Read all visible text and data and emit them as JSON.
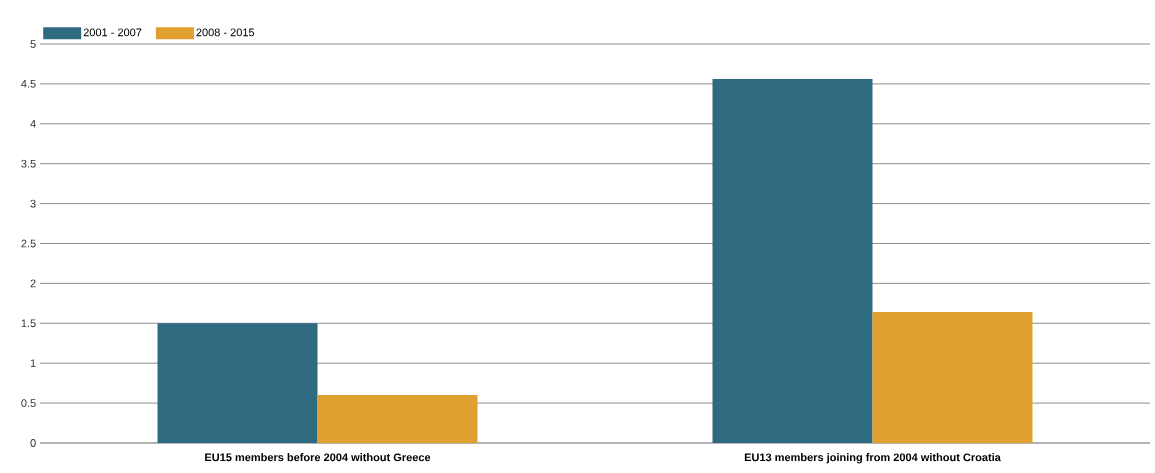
{
  "chart_data": {
    "type": "bar",
    "categories": [
      "EU15 members before 2004 without Greece",
      "EU13 members joining from 2004 without Croatia"
    ],
    "series": [
      {
        "name": "2001 - 2007",
        "color": "#2e6b80",
        "values": [
          1.5,
          4.56
        ]
      },
      {
        "name": "2008 - 2015",
        "color": "#e0a030",
        "values": [
          0.6,
          1.64
        ]
      }
    ],
    "ylim": [
      0,
      5
    ],
    "yticks": [
      0,
      0.5,
      1,
      1.5,
      2,
      2.5,
      3,
      3.5,
      4,
      4.5,
      5
    ],
    "grid": "y",
    "legend": "top left"
  }
}
